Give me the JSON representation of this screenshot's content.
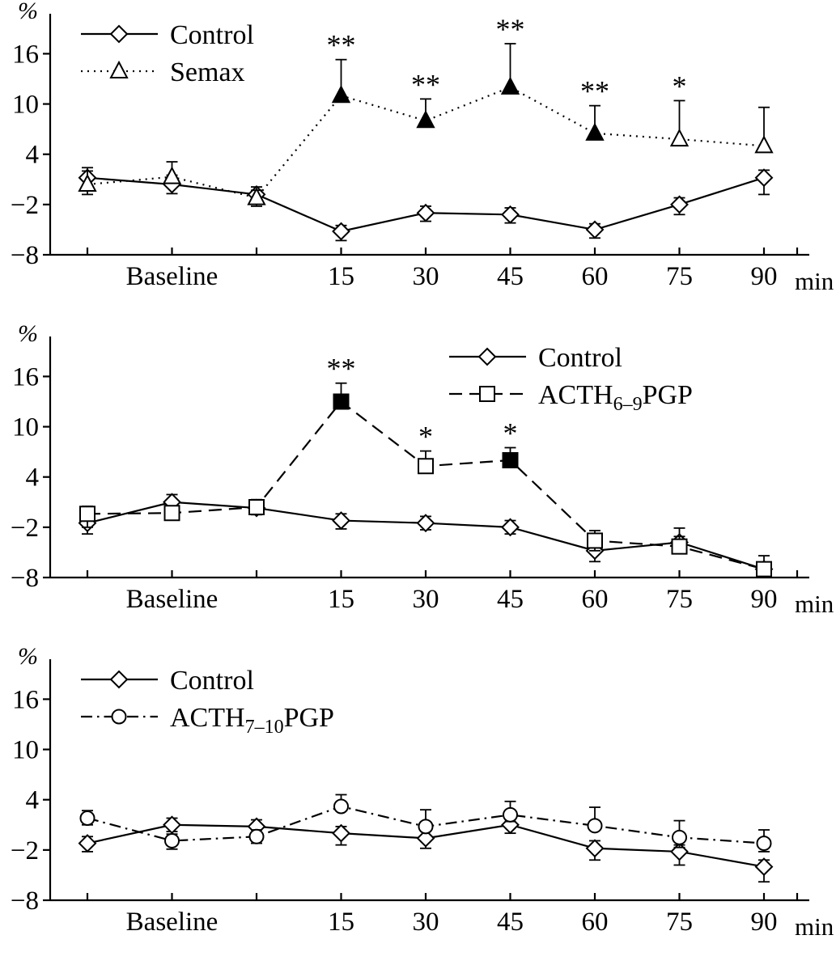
{
  "page": {
    "background": "#ffffff",
    "ink": "#000000"
  },
  "chart_data": [
    {
      "type": "line",
      "title": "",
      "ylabel": "%",
      "xlabel": "min",
      "ylim": [
        -8,
        20
      ],
      "yticks": [
        16,
        10,
        4,
        -2,
        -8
      ],
      "grid": false,
      "x_points": 9,
      "x_labels": [
        {
          "index": 1,
          "text": "Baseline"
        },
        {
          "index": 3,
          "text": "15"
        },
        {
          "index": 4,
          "text": "30"
        },
        {
          "index": 5,
          "text": "45"
        },
        {
          "index": 6,
          "text": "60"
        },
        {
          "index": 7,
          "text": "75"
        },
        {
          "index": 8,
          "text": "90"
        }
      ],
      "legend_position": "left",
      "series": [
        {
          "name": "Control",
          "label_pre": "Control",
          "label_sub": "",
          "label_post": "",
          "marker": "diamond",
          "line": "solid",
          "values": [
            1.2,
            0.4,
            -0.8,
            -5.2,
            -3.0,
            -3.2,
            -5.0,
            -2.0,
            1.2
          ],
          "err_up": [
            1.2,
            1.1,
            0.9,
            0.7,
            0.8,
            0.8,
            0.7,
            0.8,
            0.9
          ],
          "err_down": [
            1.2,
            1.1,
            0.9,
            1.1,
            1.0,
            1.0,
            1.0,
            1.2,
            2.0
          ],
          "filled": [
            false,
            false,
            false,
            false,
            false,
            false,
            false,
            false,
            false
          ],
          "stars": [
            "",
            "",
            "",
            "",
            "",
            "",
            "",
            "",
            ""
          ]
        },
        {
          "name": "Semax",
          "label_pre": "Semax",
          "label_sub": "",
          "label_post": "",
          "marker": "triangle",
          "line": "dotted",
          "values": [
            0.4,
            1.3,
            -1.2,
            11.0,
            8.0,
            12.0,
            6.5,
            5.8,
            5.0
          ],
          "err_up": [
            1.6,
            1.8,
            0.9,
            4.3,
            2.6,
            5.2,
            3.3,
            4.6,
            4.6
          ],
          "err_down": [
            1.2,
            0,
            1.0,
            0,
            0,
            0,
            0,
            0,
            0
          ],
          "filled": [
            false,
            false,
            false,
            true,
            true,
            true,
            true,
            false,
            false
          ],
          "stars": [
            "",
            "",
            "",
            "**",
            "**",
            "**",
            "**",
            "*",
            ""
          ]
        }
      ]
    },
    {
      "type": "line",
      "title": "",
      "ylabel": "%",
      "xlabel": "min",
      "ylim": [
        -8,
        20
      ],
      "yticks": [
        16,
        10,
        4,
        -2,
        -8
      ],
      "grid": false,
      "x_points": 9,
      "x_labels": [
        {
          "index": 1,
          "text": "Baseline"
        },
        {
          "index": 3,
          "text": "15"
        },
        {
          "index": 4,
          "text": "30"
        },
        {
          "index": 5,
          "text": "45"
        },
        {
          "index": 6,
          "text": "60"
        },
        {
          "index": 7,
          "text": "75"
        },
        {
          "index": 8,
          "text": "90"
        }
      ],
      "legend_position": "right",
      "series": [
        {
          "name": "Control",
          "label_pre": "Control",
          "label_sub": "",
          "label_post": "",
          "marker": "diamond",
          "line": "solid",
          "values": [
            -1.5,
            1.0,
            0.3,
            -1.2,
            -1.5,
            -2.0,
            -4.8,
            -3.8,
            -7.0
          ],
          "err_up": [
            0.8,
            0.9,
            0.8,
            0.8,
            0.8,
            0.8,
            0.8,
            1.7,
            0.8
          ],
          "err_down": [
            1.3,
            0.8,
            0.8,
            1.0,
            0.8,
            0.8,
            1.3,
            0.8,
            0.8
          ],
          "filled": [
            false,
            false,
            false,
            false,
            false,
            false,
            false,
            false,
            false
          ],
          "stars": [
            "",
            "",
            "",
            "",
            "",
            "",
            "",
            "",
            ""
          ]
        },
        {
          "name": "ACTH6-9PGP",
          "label_pre": "ACTH",
          "label_sub": "6–9",
          "label_post": "PGP",
          "marker": "square",
          "line": "dashed",
          "values": [
            -0.4,
            -0.3,
            0.4,
            13.0,
            5.3,
            6.0,
            -3.6,
            -4.3,
            -7.0
          ],
          "err_up": [
            0.9,
            0.8,
            0.9,
            2.2,
            1.8,
            1.5,
            1.2,
            1.2,
            1.6
          ],
          "err_down": [
            1.6,
            0.8,
            0.8,
            0,
            0,
            0,
            1.2,
            0.8,
            0.8
          ],
          "filled": [
            false,
            false,
            false,
            true,
            false,
            true,
            false,
            false,
            false
          ],
          "stars": [
            "",
            "",
            "",
            "**",
            "*",
            "*",
            "",
            "",
            ""
          ]
        }
      ]
    },
    {
      "type": "line",
      "title": "",
      "ylabel": "%",
      "xlabel": "min",
      "ylim": [
        -8,
        20
      ],
      "yticks": [
        16,
        10,
        4,
        -2,
        -8
      ],
      "grid": false,
      "x_points": 9,
      "x_labels": [
        {
          "index": 1,
          "text": "Baseline"
        },
        {
          "index": 3,
          "text": "15"
        },
        {
          "index": 4,
          "text": "30"
        },
        {
          "index": 5,
          "text": "45"
        },
        {
          "index": 6,
          "text": "60"
        },
        {
          "index": 7,
          "text": "75"
        },
        {
          "index": 8,
          "text": "90"
        }
      ],
      "legend_position": "left",
      "series": [
        {
          "name": "Control",
          "label_pre": "Control",
          "label_sub": "",
          "label_post": "",
          "marker": "diamond",
          "line": "solid",
          "values": [
            -1.2,
            1.0,
            0.8,
            0.0,
            -0.6,
            1.0,
            -1.8,
            -2.2,
            -4.0
          ],
          "err_up": [
            0.8,
            0.8,
            0.8,
            0.8,
            0.9,
            1.3,
            0.9,
            0.8,
            0.8
          ],
          "err_down": [
            1.0,
            0.8,
            0.8,
            1.4,
            1.2,
            1.0,
            1.4,
            1.6,
            1.8
          ],
          "filled": [
            false,
            false,
            false,
            false,
            false,
            false,
            false,
            false,
            false
          ],
          "stars": [
            "",
            "",
            "",
            "",
            "",
            "",
            "",
            "",
            ""
          ]
        },
        {
          "name": "ACTH7-10PGP",
          "label_pre": "ACTH",
          "label_sub": "7–10",
          "label_post": "PGP",
          "marker": "circle",
          "line": "dashdot",
          "values": [
            1.8,
            -0.9,
            -0.4,
            3.2,
            0.8,
            2.2,
            0.9,
            -0.5,
            -1.2
          ],
          "err_up": [
            0.9,
            0.8,
            0.8,
            1.4,
            2.0,
            1.6,
            2.2,
            2.0,
            1.6
          ],
          "err_down": [
            0.8,
            1.0,
            0.8,
            0,
            0,
            0.8,
            0,
            1.2,
            1.0
          ],
          "filled": [
            false,
            false,
            false,
            false,
            false,
            false,
            false,
            false,
            false
          ],
          "stars": [
            "",
            "",
            "",
            "",
            "",
            "",
            "",
            "",
            ""
          ]
        }
      ]
    }
  ]
}
